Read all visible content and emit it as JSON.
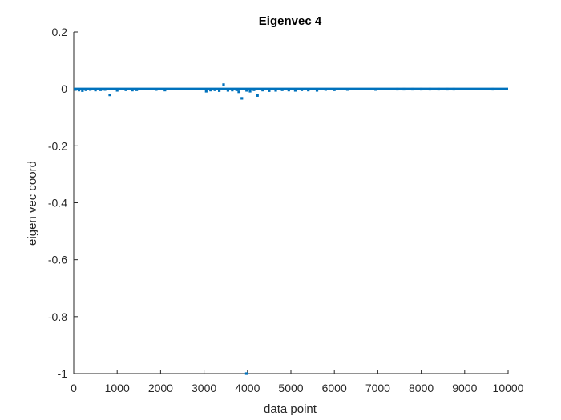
{
  "chart_data": {
    "type": "scatter",
    "title": "Eigenvec 4",
    "xlabel": "data point",
    "ylabel": "eigen vec coord",
    "xlim": [
      0,
      10000
    ],
    "ylim": [
      -1,
      0.2
    ],
    "x_ticks": [
      0,
      1000,
      2000,
      3000,
      4000,
      5000,
      6000,
      7000,
      8000,
      9000,
      10000
    ],
    "y_ticks": [
      0.2,
      0,
      -0.2,
      -0.4,
      -0.6,
      -0.8,
      -1
    ],
    "x_tick_labels": [
      "0",
      "1000",
      "2000",
      "3000",
      "4000",
      "5000",
      "6000",
      "7000",
      "8000",
      "9000",
      "10000"
    ],
    "y_tick_labels": [
      "0.2",
      "0",
      "-0.2",
      "-0.4",
      "-0.6",
      "-0.8",
      "-1"
    ],
    "grid": false,
    "marker_color": "#0072BD",
    "baseline_value": 0,
    "baseline_range": [
      0,
      10000
    ],
    "series": [
      {
        "points": [
          {
            "x": 40,
            "y": -0.002
          },
          {
            "x": 120,
            "y": -0.004
          },
          {
            "x": 200,
            "y": -0.006
          },
          {
            "x": 280,
            "y": -0.003
          },
          {
            "x": 380,
            "y": -0.002
          },
          {
            "x": 500,
            "y": -0.004
          },
          {
            "x": 620,
            "y": -0.003
          },
          {
            "x": 720,
            "y": -0.002
          },
          {
            "x": 830,
            "y": -0.021
          },
          {
            "x": 1000,
            "y": -0.005
          },
          {
            "x": 1200,
            "y": -0.003
          },
          {
            "x": 1350,
            "y": -0.004
          },
          {
            "x": 1450,
            "y": -0.003
          },
          {
            "x": 1900,
            "y": -0.002
          },
          {
            "x": 2100,
            "y": -0.004
          },
          {
            "x": 3050,
            "y": -0.008
          },
          {
            "x": 3150,
            "y": -0.004
          },
          {
            "x": 3250,
            "y": -0.003
          },
          {
            "x": 3350,
            "y": -0.006
          },
          {
            "x": 3450,
            "y": 0.015
          },
          {
            "x": 3550,
            "y": -0.005
          },
          {
            "x": 3650,
            "y": -0.004
          },
          {
            "x": 3750,
            "y": -0.003
          },
          {
            "x": 3800,
            "y": -0.01
          },
          {
            "x": 3870,
            "y": -0.033
          },
          {
            "x": 3980,
            "y": -0.005
          },
          {
            "x": 4060,
            "y": -0.008
          },
          {
            "x": 4150,
            "y": -0.003
          },
          {
            "x": 4230,
            "y": -0.023
          },
          {
            "x": 4350,
            "y": -0.004
          },
          {
            "x": 4500,
            "y": -0.006
          },
          {
            "x": 4650,
            "y": -0.005
          },
          {
            "x": 4800,
            "y": -0.003
          },
          {
            "x": 4950,
            "y": -0.004
          },
          {
            "x": 5100,
            "y": -0.005
          },
          {
            "x": 5250,
            "y": -0.003
          },
          {
            "x": 5400,
            "y": -0.004
          },
          {
            "x": 5600,
            "y": -0.005
          },
          {
            "x": 5800,
            "y": -0.002
          },
          {
            "x": 6000,
            "y": -0.003
          },
          {
            "x": 6300,
            "y": -0.002
          },
          {
            "x": 6950,
            "y": -0.002
          },
          {
            "x": 7450,
            "y": -0.001
          },
          {
            "x": 7600,
            "y": -0.001
          },
          {
            "x": 7800,
            "y": -0.001
          },
          {
            "x": 8000,
            "y": -0.001
          },
          {
            "x": 8200,
            "y": -0.001
          },
          {
            "x": 8400,
            "y": -0.001
          },
          {
            "x": 8600,
            "y": -0.001
          },
          {
            "x": 8750,
            "y": -0.001
          },
          {
            "x": 9650,
            "y": -0.001
          },
          {
            "x": 3975,
            "y": -1.0
          }
        ]
      }
    ]
  }
}
